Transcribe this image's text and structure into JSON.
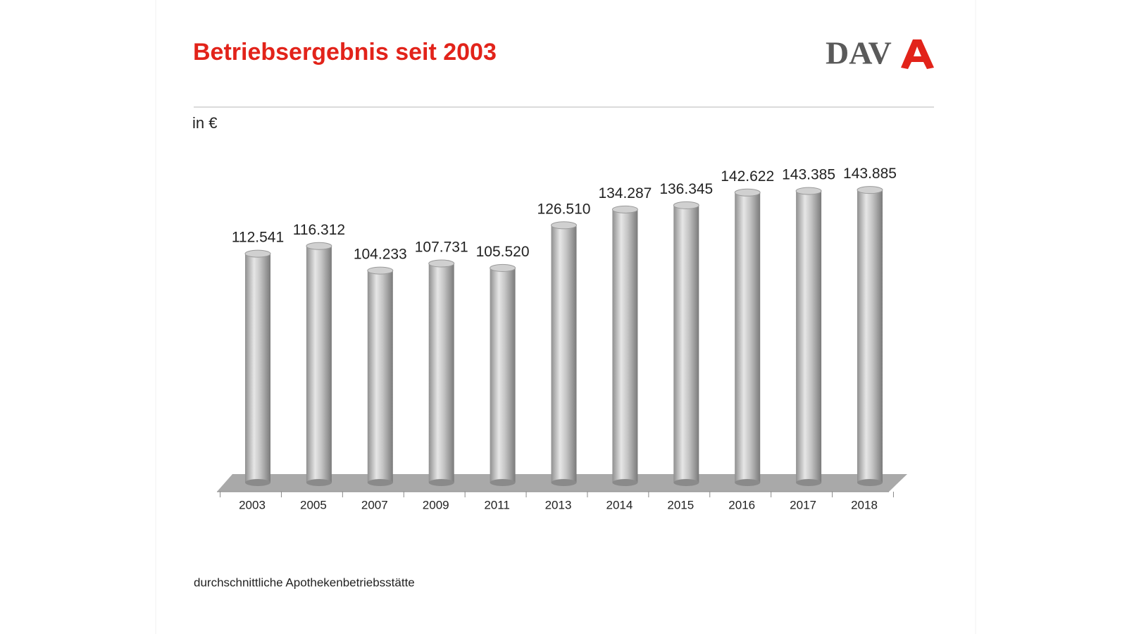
{
  "chart_data": {
    "type": "bar",
    "title": "Betriebsergebnis seit 2003",
    "logo": "DAV",
    "y_label": "in €",
    "note": "durchschnittliche Apothekenbetriebsstätte",
    "categories": [
      "2003",
      "2005",
      "2007",
      "2009",
      "2011",
      "2013",
      "2014",
      "2015",
      "2016",
      "2017",
      "2018"
    ],
    "values": [
      112541,
      116312,
      104233,
      107731,
      105520,
      126510,
      134287,
      136345,
      142622,
      143385,
      143885
    ],
    "value_labels": [
      "112.541",
      "116.312",
      "104.233",
      "107.731",
      "105.520",
      "126.510",
      "134.287",
      "136.345",
      "142.622",
      "143.385",
      "143.885"
    ],
    "color": "#b8b8b8",
    "ylim": [
      0,
      150000
    ]
  }
}
